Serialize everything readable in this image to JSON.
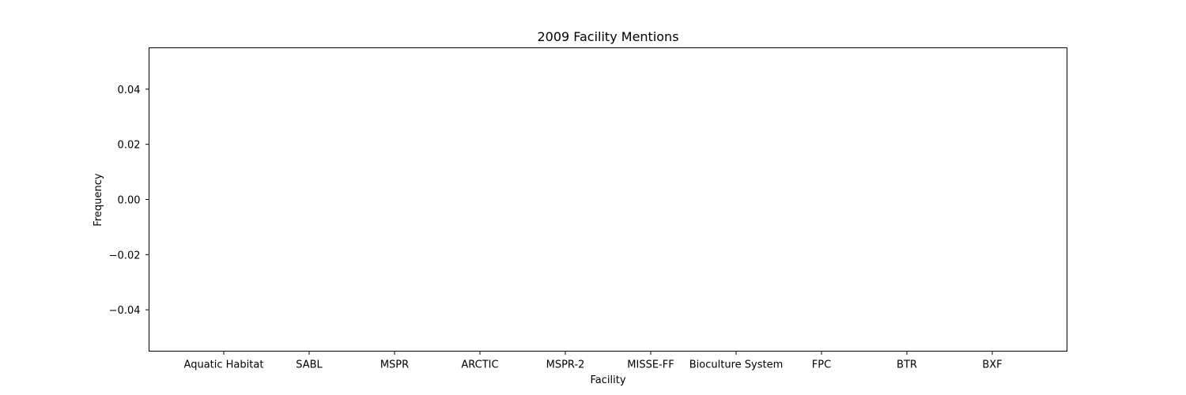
{
  "chart_data": {
    "type": "bar",
    "title": "2009 Facility Mentions",
    "xlabel": "Facility",
    "ylabel": "Frequency",
    "categories": [
      "Aquatic Habitat",
      "SABL",
      "MSPR",
      "ARCTIC",
      "MSPR-2",
      "MISSE-FF",
      "Bioculture System",
      "FPC",
      "BTR",
      "BXF"
    ],
    "values": [
      0,
      0,
      0,
      0,
      0,
      0,
      0,
      0,
      0,
      0
    ],
    "ylim": [
      -0.055,
      0.055
    ],
    "yticks": [
      0.04,
      0.02,
      0.0,
      -0.02,
      -0.04
    ],
    "ytick_labels": [
      "0.04",
      "0.02",
      "0.00",
      "−0.02",
      "−0.04"
    ],
    "grid": false,
    "legend": "none",
    "bar_color": "#1f77b4"
  }
}
